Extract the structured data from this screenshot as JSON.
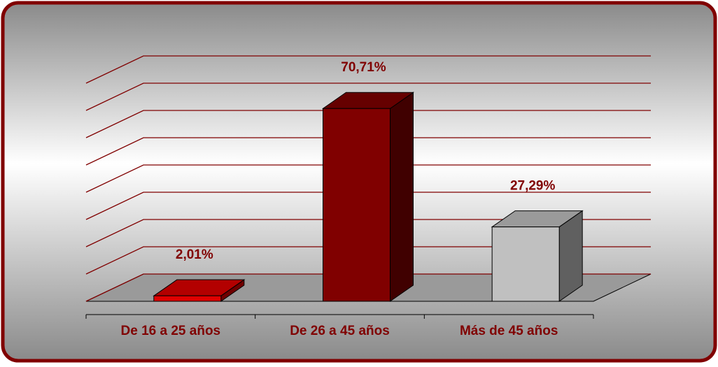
{
  "chart_data": {
    "type": "bar3d",
    "categories": [
      "De 16 a 25 años",
      "De 26 a 45 años",
      "Más de 45 años"
    ],
    "values": [
      2.01,
      70.71,
      27.29
    ],
    "value_labels": [
      "2,01%",
      "70,71%",
      "27,29%"
    ],
    "colors": [
      "#e00000",
      "#800000",
      "#c0c0c0"
    ],
    "ylim": [
      0,
      80
    ],
    "yticks": [
      0,
      10,
      20,
      30,
      40,
      50,
      60,
      70,
      80
    ],
    "grid": true
  }
}
